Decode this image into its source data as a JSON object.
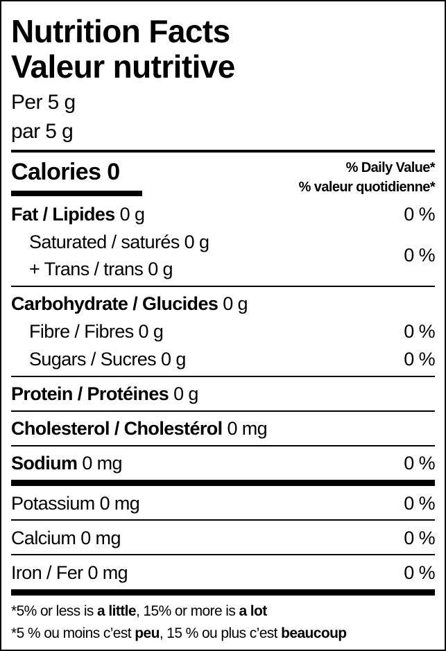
{
  "title_en": "Nutrition Facts",
  "title_fr": "Valeur nutritive",
  "serving_en": "Per 5 g",
  "serving_fr": "par 5 g",
  "calories": {
    "label": "Calories",
    "value": "0"
  },
  "dv_header_en": "% Daily Value*",
  "dv_header_fr": "% valeur quotidienne*",
  "rows": {
    "fat": {
      "label": "Fat / Lipides",
      "amount": "0 g",
      "dv": "0 %"
    },
    "saturated": {
      "label": "Saturated / saturés",
      "amount": "0 g"
    },
    "trans": {
      "label": "+ Trans / trans",
      "amount": "0 g"
    },
    "sat_trans_dv": "0 %",
    "carbohydrate": {
      "label": "Carbohydrate / Glucides",
      "amount": "0 g"
    },
    "fibre": {
      "label": "Fibre / Fibres",
      "amount": "0 g",
      "dv": "0 %"
    },
    "sugars": {
      "label": "Sugars / Sucres",
      "amount": "0 g",
      "dv": "0 %"
    },
    "protein": {
      "label": "Protein / Protéines",
      "amount": "0 g"
    },
    "cholesterol": {
      "label": "Cholesterol / Cholestérol",
      "amount": "0 mg"
    },
    "sodium": {
      "label": "Sodium",
      "amount": "0 mg",
      "dv": "0 %"
    },
    "potassium": {
      "label": "Potassium",
      "amount": "0 mg",
      "dv": "0 %"
    },
    "calcium": {
      "label": "Calcium",
      "amount": "0 mg",
      "dv": "0 %"
    },
    "iron": {
      "label": "Iron / Fer",
      "amount": "0 mg",
      "dv": "0 %"
    }
  },
  "footnote_en": {
    "p1": "*5% or less is ",
    "b1": "a little",
    "p2": ", 15% or more is ",
    "b2": "a lot"
  },
  "footnote_fr": {
    "p1": "*5 % ou moins c’est ",
    "b1": "peu",
    "p2": ", 15 % ou plus c’est ",
    "b2": "beaucoup"
  }
}
